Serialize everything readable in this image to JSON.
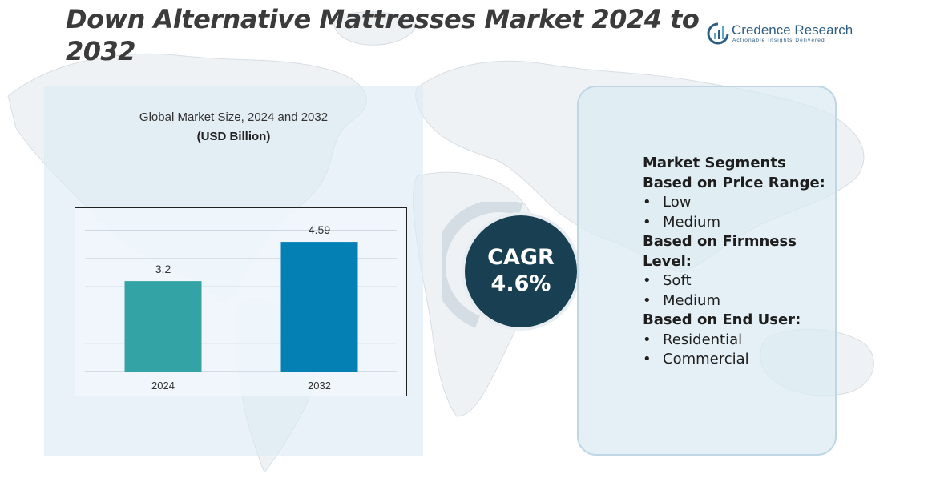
{
  "title": "Down Alternative Mattresses Market 2024 to 2032",
  "logo": {
    "name": "Credence Research",
    "tagline": "Actionable Insights Delivered"
  },
  "chart_heading": "Global Market Size, 2024 and 2032",
  "chart_unit": "(USD Billion)",
  "chart_data": {
    "type": "bar",
    "title": "Global Market Size, 2024 and 2032",
    "ylabel": "(USD Billion)",
    "xlabel": "",
    "categories": [
      "2024",
      "2032"
    ],
    "values": [
      3.2,
      4.59
    ],
    "value_labels": [
      "3.2",
      "4.59"
    ],
    "colors": [
      "#34a3a6",
      "#0580b4"
    ],
    "ylim": [
      0,
      5.5
    ],
    "gridlines": [
      1,
      2,
      3,
      4,
      5
    ],
    "grid": true
  },
  "cagr": {
    "label": "CAGR",
    "value": "4.6%"
  },
  "segments": {
    "intro": [
      "Market Segments"
    ],
    "groups": [
      {
        "heading": "Based on Price Range:",
        "items": [
          "Low",
          "Medium"
        ]
      },
      {
        "heading": "Based on Firmness Level:",
        "items": [
          "Soft",
          "Medium"
        ]
      },
      {
        "heading": "Based on End User:",
        "items": [
          "Residential",
          "Commercial"
        ]
      }
    ]
  },
  "colors": {
    "panel_bg": "#dbeaf3",
    "cagr_circle": "#193f52",
    "title_text": "#3b3b3b",
    "brand": "#2e5d84"
  }
}
